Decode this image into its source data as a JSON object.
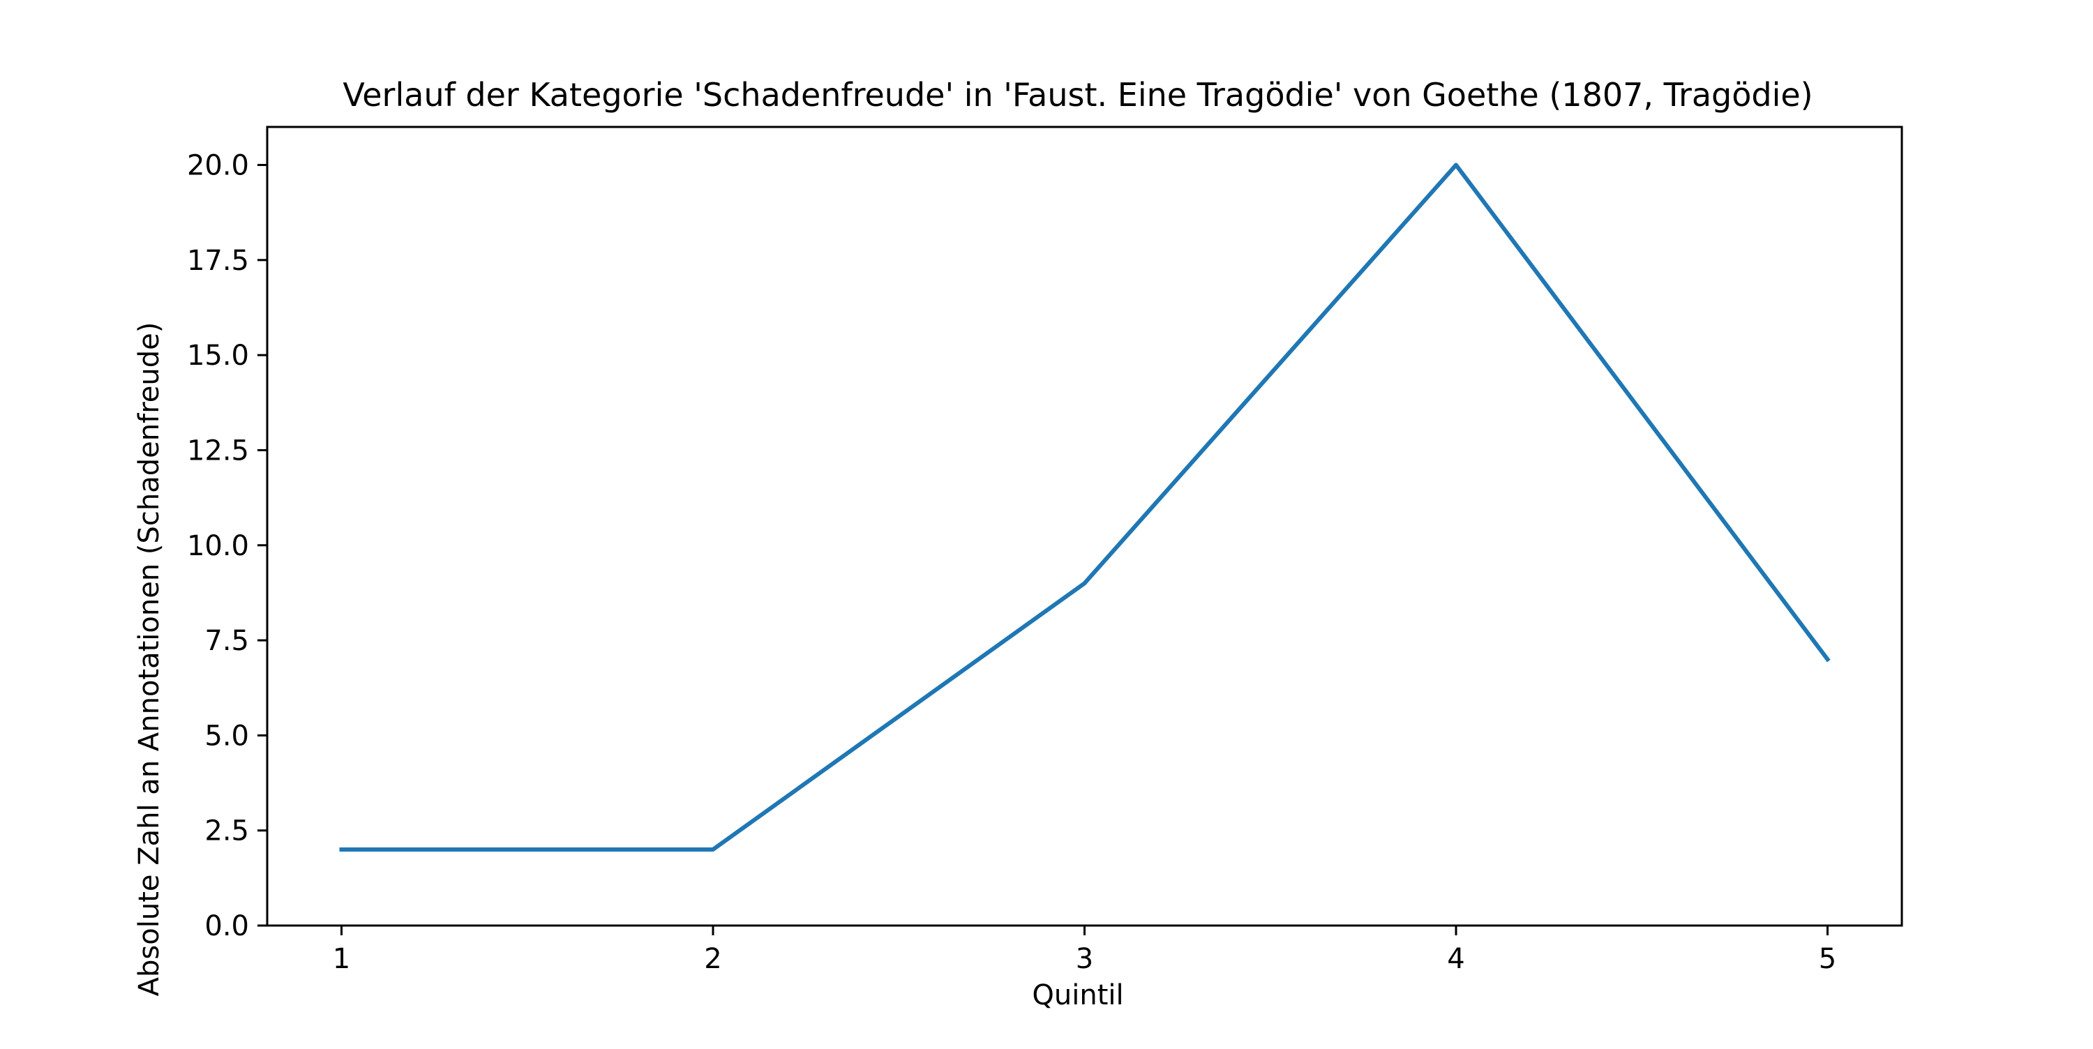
{
  "chart_data": {
    "type": "line",
    "title": "Verlauf der Kategorie 'Schadenfreude' in 'Faust. Eine Tragödie' von Goethe (1807, Tragödie)",
    "xlabel": "Quintil",
    "ylabel": "Absolute Zahl an Annotationen (Schadenfreude)",
    "x": [
      1,
      2,
      3,
      4,
      5
    ],
    "xticks": [
      "1",
      "2",
      "3",
      "4",
      "5"
    ],
    "xlim": [
      0.8,
      5.2
    ],
    "ylim": [
      0,
      21
    ],
    "yticks": [
      "0.0",
      "2.5",
      "5.0",
      "7.5",
      "10.0",
      "12.5",
      "15.0",
      "17.5",
      "20.0"
    ],
    "ytick_values": [
      0,
      2.5,
      5,
      7.5,
      10,
      12.5,
      15,
      17.5,
      20
    ],
    "grid": false,
    "series": [
      {
        "color": "#1f77b4",
        "values": [
          2,
          2,
          9,
          20,
          7
        ]
      }
    ]
  }
}
